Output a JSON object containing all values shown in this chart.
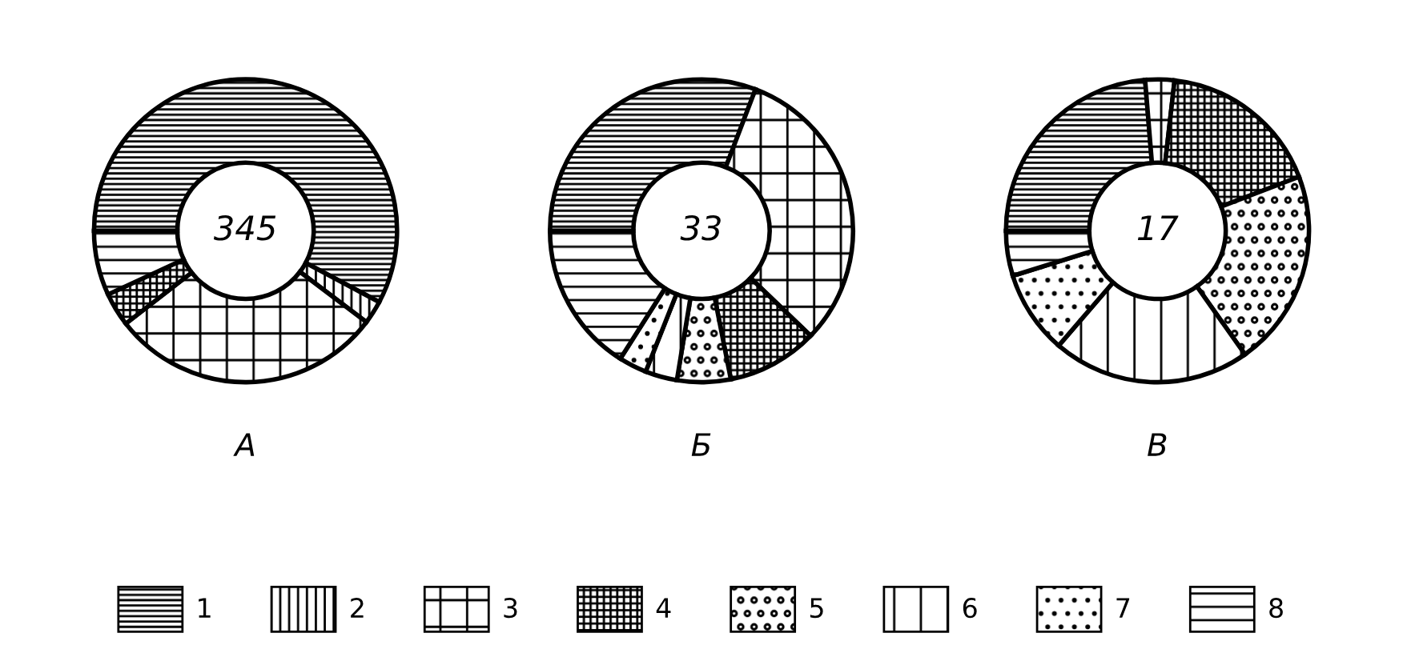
{
  "chart_data": [
    {
      "type": "donut",
      "title": "А",
      "annotations": [
        "345"
      ],
      "categories": [
        "1",
        "2",
        "3",
        "4",
        "5",
        "6",
        "7",
        "8"
      ],
      "values": [
        57.8,
        2.5,
        29.2,
        3.6,
        null,
        null,
        null,
        6.9
      ],
      "colors": [
        "#000000",
        "#000000",
        "#000000",
        "#000000",
        "#000000",
        "#000000",
        "#000000",
        "#000000"
      ],
      "legend": "bottom"
    },
    {
      "type": "donut",
      "title": "Б",
      "annotations": [
        "33"
      ],
      "categories": [
        null,
        null,
        null,
        null,
        null,
        null,
        null,
        null
      ],
      "values": [
        30.8,
        null,
        31.4,
        9.7,
        5.7,
        3.4,
        3.0,
        16.0
      ],
      "colors": [
        "#000000",
        "#000000",
        "#000000",
        "#000000",
        "#000000",
        "#000000",
        "#000000",
        "#000000"
      ]
    },
    {
      "type": "donut",
      "title": "В",
      "annotations": [
        "17"
      ],
      "categories": [
        null,
        null,
        null,
        null,
        null,
        null,
        null,
        null
      ],
      "values": [
        23.7,
        null,
        3.1,
        17.4,
        21.0,
        21.1,
        8.9,
        4.8
      ],
      "colors": [
        "#000000",
        "#000000",
        "#000000",
        "#000000",
        "#000000",
        "#000000",
        "#000000",
        "#000000"
      ]
    }
  ]
}
